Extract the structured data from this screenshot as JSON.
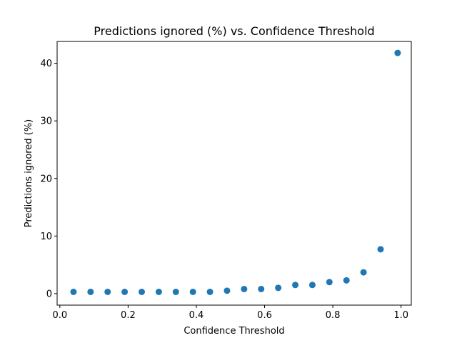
{
  "chart_data": {
    "type": "scatter",
    "title": "Predictions ignored (%) vs. Confidence Threshold",
    "xlabel": "Confidence Threshold",
    "ylabel": "Predictions ignored (%)",
    "xlim": [
      -0.008,
      1.03
    ],
    "ylim": [
      -2.0,
      43.8
    ],
    "xticks": [
      0.0,
      0.2,
      0.4,
      0.6,
      0.8,
      1.0
    ],
    "xtick_labels": [
      "0.0",
      "0.2",
      "0.4",
      "0.6",
      "0.8",
      "1.0"
    ],
    "yticks": [
      0,
      10,
      20,
      30,
      40
    ],
    "ytick_labels": [
      "0",
      "10",
      "20",
      "30",
      "40"
    ],
    "grid": false,
    "marker_color": "#1f77b4",
    "series": [
      {
        "x": [
          0.04,
          0.09,
          0.14,
          0.19,
          0.24,
          0.29,
          0.34,
          0.39,
          0.44,
          0.49,
          0.54,
          0.59,
          0.64,
          0.69,
          0.74,
          0.79,
          0.84,
          0.89,
          0.94,
          0.99
        ],
        "y": [
          0.3,
          0.3,
          0.3,
          0.3,
          0.3,
          0.3,
          0.3,
          0.3,
          0.3,
          0.5,
          0.8,
          0.8,
          1.0,
          1.5,
          1.5,
          2.0,
          2.3,
          3.7,
          7.7,
          41.8
        ]
      }
    ]
  }
}
